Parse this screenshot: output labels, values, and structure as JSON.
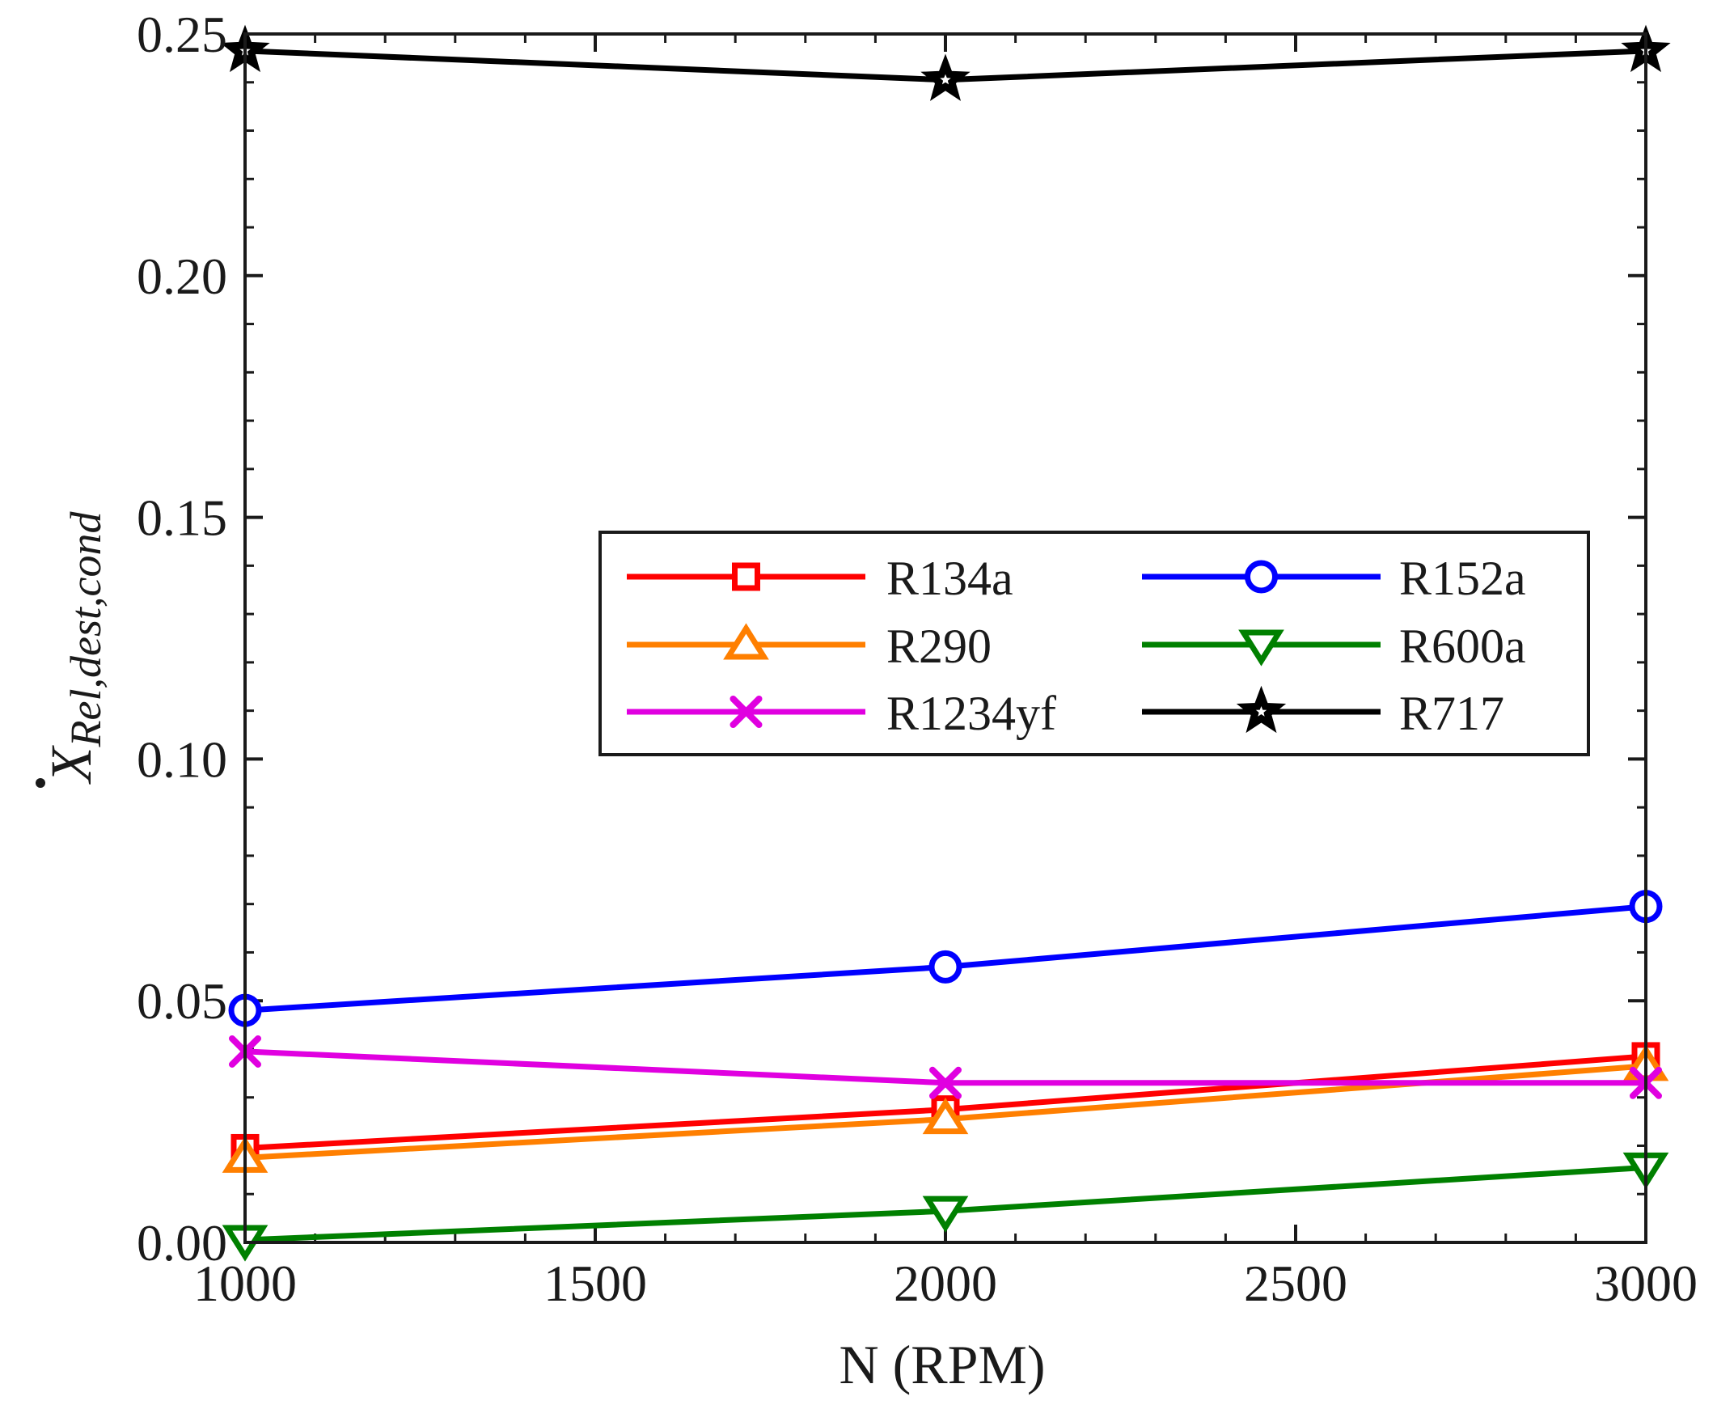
{
  "chart_data": {
    "type": "line",
    "title": "",
    "xlabel": "N (RPM)",
    "ylabel": {
      "symbol": "X",
      "subscript": "Rel,dest,cond",
      "accent": "dot"
    },
    "xlim": [
      1000,
      3000
    ],
    "ylim": [
      0,
      0.25
    ],
    "xticks": [
      1000,
      1500,
      2000,
      2500,
      3000
    ],
    "xtick_labels": [
      "1000",
      "1500",
      "2000",
      "2500",
      "3000"
    ],
    "yticks": [
      0,
      0.05,
      0.1,
      0.15,
      0.2,
      0.25
    ],
    "ytick_labels": [
      "0.00",
      "0.05",
      "0.10",
      "0.15",
      "0.20",
      "0.25"
    ],
    "grid": false,
    "legend_position": "center-right",
    "x": [
      1000,
      2000,
      3000
    ],
    "series": [
      {
        "name": "R134a",
        "color": "#ff0000",
        "marker": "square",
        "values": [
          0.0195,
          0.0275,
          0.0385
        ]
      },
      {
        "name": "R152a",
        "color": "#0000ff",
        "marker": "circle",
        "values": [
          0.048,
          0.057,
          0.0695
        ]
      },
      {
        "name": "R290",
        "color": "#ff7f00",
        "marker": "triangle-up",
        "values": [
          0.0175,
          0.0255,
          0.0365
        ]
      },
      {
        "name": "R600a",
        "color": "#008000",
        "marker": "triangle-down",
        "values": [
          0.0005,
          0.0065,
          0.0155
        ]
      },
      {
        "name": "R1234yf",
        "color": "#e000e0",
        "marker": "x",
        "values": [
          0.0395,
          0.033,
          0.033
        ]
      },
      {
        "name": "R717",
        "color": "#000000",
        "marker": "star",
        "values": [
          0.2465,
          0.2405,
          0.2465
        ]
      }
    ]
  }
}
